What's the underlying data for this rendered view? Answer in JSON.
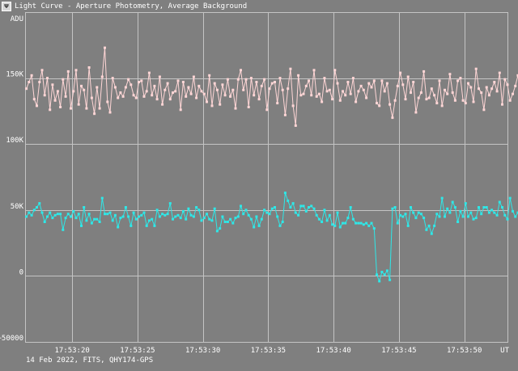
{
  "window": {
    "title": "Light Curve - Aperture Photometry, Average Background",
    "icon": "app-icon",
    "icon_glyph": "Ψ"
  },
  "footer": {
    "caption": "14 Feb 2022, FITS, QHY174-GPS"
  },
  "colors": {
    "background": "#7f7f7f",
    "grid": "#c4c4c4",
    "series_upper": "#ffd6d6",
    "series_lower": "#2ee8e8",
    "text": "#ffffff"
  },
  "chart_data": {
    "type": "line",
    "title": "Light Curve - Aperture Photometry, Average Background",
    "ylabel": "ADU",
    "xlabel": "UT",
    "xlim": [
      "17:53:16.4",
      "17:53:53.3"
    ],
    "ylim": [
      -50000,
      200000
    ],
    "grid": true,
    "legend": "none",
    "x_ticks": [
      "17:53:20",
      "17:53:25",
      "17:53:30",
      "17:53:35",
      "17:53:40",
      "17:53:45",
      "17:53:50"
    ],
    "y_ticks": [
      {
        "value": 150000,
        "label": "150K"
      },
      {
        "value": 100000,
        "label": "100K"
      },
      {
        "value": 50000,
        "label": "50K"
      },
      {
        "value": 0,
        "label": "0"
      },
      {
        "value": -50000,
        "label": "−50000"
      }
    ],
    "x_start": "17:53:16.5",
    "x_step_seconds": 0.2,
    "series": [
      {
        "values": [
          142000,
          147000,
          152000,
          134000,
          129000,
          147000,
          156000,
          137000,
          150000,
          126000,
          145000,
          133000,
          140000,
          128000,
          149000,
          136000,
          155000,
          127000,
          140000,
          156000,
          130000,
          144000,
          141000,
          127000,
          158000,
          135000,
          123000,
          143000,
          127000,
          151000,
          173000,
          132000,
          124000,
          150000,
          143000,
          135000,
          139000,
          136000,
          143000,
          149000,
          145000,
          137000,
          135000,
          147000,
          148000,
          136000,
          140000,
          154000,
          137000,
          144000,
          134000,
          151000,
          130000,
          141000,
          146000,
          134000,
          139000,
          140000,
          148000,
          126000,
          147000,
          136000,
          143000,
          138000,
          151000,
          135000,
          144000,
          140000,
          138000,
          132000,
          152000,
          129000,
          146000,
          141000,
          130000,
          145000,
          137000,
          149000,
          136000,
          141000,
          127000,
          149000,
          156000,
          141000,
          149000,
          128000,
          150000,
          137000,
          147000,
          134000,
          144000,
          149000,
          126000,
          142000,
          146000,
          147000,
          131000,
          150000,
          141000,
          122000,
          142000,
          157000,
          129000,
          114000,
          152000,
          137000,
          138000,
          144000,
          148000,
          137000,
          156000,
          136000,
          138000,
          132000,
          150000,
          140000,
          141000,
          134000,
          156000,
          146000,
          133000,
          140000,
          137000,
          147000,
          138000,
          150000,
          132000,
          140000,
          144000,
          141000,
          135000,
          146000,
          143000,
          148000,
          131000,
          129000,
          148000,
          140000,
          146000,
          130000,
          120000,
          133000,
          144000,
          154000,
          145000,
          134000,
          151000,
          139000,
          147000,
          124000,
          135000,
          139000,
          155000,
          134000,
          135000,
          142000,
          137000,
          131000,
          148000,
          129000,
          141000,
          138000,
          153000,
          139000,
          133000,
          148000,
          150000,
          133000,
          131000,
          146000,
          143000,
          132000,
          157000,
          142000,
          139000,
          126000,
          143000,
          137000,
          142000,
          147000,
          140000,
          154000,
          130000,
          149000,
          145000,
          133000,
          138000,
          144000,
          152000,
          137000,
          147000,
          127000,
          138000,
          145000,
          152000,
          132000,
          143000,
          148000,
          152000,
          125000,
          133000,
          139000,
          147000,
          141000,
          142000,
          138000,
          134000,
          152000,
          136000,
          174000,
          120000,
          143000,
          136000,
          133000,
          148000,
          139000,
          143000,
          127000,
          145000,
          137000,
          149000,
          130000,
          139000,
          154000,
          125000,
          141000,
          140000,
          153000,
          128000,
          145000,
          138000,
          150000,
          137000,
          143000,
          139000,
          141000,
          146000,
          146000,
          138000,
          146000,
          135000,
          140000,
          143000,
          134000,
          142000,
          148000,
          138000,
          123000,
          144000,
          142000,
          151000,
          131000,
          140000,
          148000,
          144000,
          137000,
          148000,
          134000,
          138000,
          153000,
          142000,
          124000,
          130000,
          145000,
          157000,
          127000,
          146000,
          129000,
          144000,
          131000,
          150000,
          138000,
          145000,
          136000,
          139000,
          144000,
          135000,
          124000,
          142000,
          173000,
          130000,
          125000,
          141000,
          150000,
          131000,
          140000,
          143000,
          136000,
          139000,
          140000,
          141000,
          137000,
          143000,
          135000,
          141000,
          138000,
          147000,
          131000,
          143000
        ]
      },
      {
        "values": [
          45000,
          48000,
          46000,
          50000,
          52000,
          55000,
          48000,
          41000,
          45000,
          48000,
          44000,
          46000,
          47000,
          47000,
          35000,
          44000,
          47000,
          45000,
          49000,
          44000,
          47000,
          38000,
          52000,
          42000,
          47000,
          40000,
          43000,
          43000,
          41000,
          59000,
          47000,
          47000,
          48000,
          42000,
          46000,
          37000,
          44000,
          45000,
          52000,
          45000,
          38000,
          48000,
          43000,
          45000,
          46000,
          48000,
          38000,
          42000,
          43000,
          38000,
          50000,
          45000,
          47000,
          46000,
          47000,
          55000,
          43000,
          45000,
          46000,
          44000,
          49000,
          43000,
          51000,
          46000,
          45000,
          52000,
          50000,
          42000,
          44000,
          47000,
          43000,
          42000,
          51000,
          34000,
          36000,
          45000,
          41000,
          41000,
          43000,
          40000,
          44000,
          45000,
          53000,
          47000,
          50000,
          46000,
          43000,
          37000,
          45000,
          38000,
          43000,
          50000,
          48000,
          47000,
          51000,
          52000,
          45000,
          38000,
          41000,
          63000,
          57000,
          52000,
          55000,
          48000,
          46000,
          53000,
          53000,
          49000,
          52000,
          53000,
          51000,
          46000,
          43000,
          41000,
          50000,
          42000,
          46000,
          39000,
          38000,
          48000,
          37000,
          40000,
          40000,
          44000,
          52000,
          43000,
          40000,
          40000,
          40000,
          39000,
          40000,
          38000,
          40000,
          36000,
          1000,
          -4000,
          3000,
          1000,
          4000,
          -3000,
          51000,
          52000,
          40000,
          46000,
          45000,
          47000,
          38000,
          52000,
          48000,
          44000,
          48000,
          47000,
          44000,
          35000,
          38000,
          32000,
          38000,
          47000,
          45000,
          59000,
          45000,
          51000,
          48000,
          56000,
          52000,
          41000,
          49000,
          45000,
          55000,
          45000,
          48000,
          43000,
          44000,
          52000,
          47000,
          52000,
          52000,
          48000,
          50000,
          48000,
          46000,
          56000,
          52000,
          46000,
          43000,
          59000,
          49000,
          45000,
          48000,
          46000,
          39000,
          50000,
          50000,
          47000,
          54000,
          52000,
          47000,
          44000,
          48000,
          46000,
          41000,
          40000,
          51000,
          38000,
          47000,
          50000,
          35000,
          50000,
          40000,
          42000,
          49000,
          36000,
          55000,
          40000,
          45000,
          48000,
          37000,
          42000,
          38000,
          48000,
          46000,
          41000,
          44000,
          46000,
          51000,
          49000,
          40000,
          48000,
          45000,
          45000,
          36000,
          40000,
          42000,
          38000,
          48000,
          56000,
          53000,
          44000,
          37000,
          49000,
          45000,
          34000,
          43000,
          49000,
          44000,
          56000,
          45000,
          49000,
          56000,
          40000,
          57000,
          43000,
          66000,
          49000,
          42000,
          50000,
          52000,
          46000,
          43000,
          38000,
          44000,
          48000,
          46000,
          49000,
          47000,
          26000,
          43000,
          50000,
          41000,
          48000,
          50000,
          45000,
          46000,
          57000,
          47000,
          50000,
          48000,
          53000,
          50000,
          51000,
          49000,
          52000,
          43000,
          48000,
          38000,
          37000,
          40000,
          47000,
          41000,
          46000,
          45000,
          47000,
          46000,
          38000,
          52000,
          49000,
          51000,
          47000,
          45000,
          33000
        ]
      }
    ]
  }
}
